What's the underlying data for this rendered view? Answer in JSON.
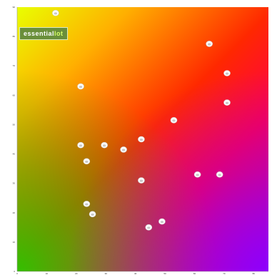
{
  "chart_data": {
    "type": "scatter",
    "title": "",
    "subtitle": "",
    "xlabel": "",
    "ylabel": "",
    "xlim": [
      0,
      85
    ],
    "ylim": [
      0,
      90
    ],
    "x_ticks": [
      0,
      10,
      20,
      30,
      40,
      50,
      60,
      70,
      80
    ],
    "y_ticks": [
      0,
      10,
      20,
      30,
      40,
      50,
      60,
      70,
      80,
      90
    ],
    "grid": false,
    "points": [
      {
        "x": 13,
        "y": 88
      },
      {
        "x": 21.5,
        "y": 63
      },
      {
        "x": 21.5,
        "y": 43
      },
      {
        "x": 23.5,
        "y": 37.5
      },
      {
        "x": 29.5,
        "y": 43
      },
      {
        "x": 36,
        "y": 41.5
      },
      {
        "x": 42,
        "y": 45
      },
      {
        "x": 42,
        "y": 31
      },
      {
        "x": 53,
        "y": 51.5
      },
      {
        "x": 61,
        "y": 33
      },
      {
        "x": 68.5,
        "y": 33
      },
      {
        "x": 65,
        "y": 77.5
      },
      {
        "x": 71,
        "y": 67.5
      },
      {
        "x": 71,
        "y": 57.5
      },
      {
        "x": 23.5,
        "y": 23
      },
      {
        "x": 25.5,
        "y": 19.5
      },
      {
        "x": 44.5,
        "y": 15
      },
      {
        "x": 49,
        "y": 17
      }
    ]
  },
  "badge": {
    "brand_part1": "essential",
    "brand_part2": "lot"
  },
  "corners": {
    "top_left": "",
    "top_right": "",
    "bottom_left": "",
    "bottom_right": ""
  }
}
